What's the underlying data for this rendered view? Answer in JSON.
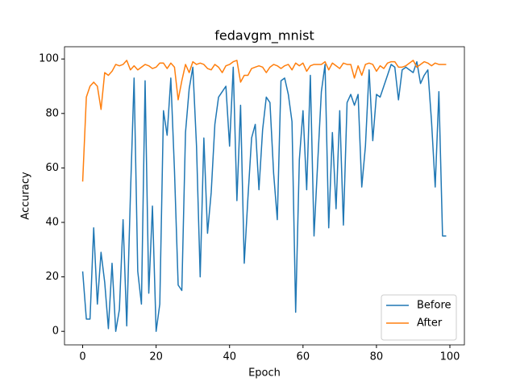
{
  "chart_data": {
    "type": "line",
    "title": "fedavgm_mnist",
    "xlabel": "Epoch",
    "ylabel": "Accuracy",
    "x": [
      0,
      1,
      2,
      3,
      4,
      5,
      6,
      7,
      8,
      9,
      10,
      11,
      12,
      13,
      14,
      15,
      16,
      17,
      18,
      19,
      20,
      21,
      22,
      23,
      24,
      25,
      26,
      27,
      28,
      29,
      30,
      31,
      32,
      33,
      34,
      35,
      36,
      37,
      38,
      39,
      40,
      41,
      42,
      43,
      44,
      45,
      46,
      47,
      48,
      49,
      50,
      51,
      52,
      53,
      54,
      55,
      56,
      57,
      58,
      59,
      60,
      61,
      62,
      63,
      64,
      65,
      66,
      67,
      68,
      69,
      70,
      71,
      72,
      73,
      74,
      75,
      76,
      77,
      78,
      79,
      80,
      81,
      82,
      83,
      84,
      85,
      86,
      87,
      88,
      89,
      90,
      91,
      92,
      93,
      94,
      95,
      96,
      97,
      98,
      99
    ],
    "series": [
      {
        "name": "Before",
        "color": "#1f77b4",
        "values": [
          22,
          4.5,
          4.5,
          38,
          10,
          29,
          18,
          1,
          25,
          0,
          8,
          41,
          2,
          50,
          93,
          22,
          10,
          92,
          14,
          46,
          0,
          10,
          81,
          72,
          93,
          59,
          17,
          15,
          73,
          89,
          97,
          68,
          20,
          71,
          36,
          51,
          76,
          86,
          88,
          90,
          68,
          97,
          48,
          83,
          25,
          49,
          71,
          76,
          52,
          74,
          86,
          84,
          58,
          41,
          92,
          93,
          87,
          77,
          7,
          63,
          81,
          52,
          94,
          35,
          62,
          88,
          98,
          38,
          73,
          45,
          81,
          39,
          84,
          87,
          83,
          87,
          53,
          68,
          96,
          70,
          87,
          86,
          90,
          94,
          98,
          97,
          85,
          96,
          97,
          96,
          95,
          99,
          91,
          94,
          96,
          77,
          53,
          88,
          35,
          35
        ]
      },
      {
        "name": "After",
        "color": "#ff7f0e",
        "values": [
          55,
          86,
          90,
          91.5,
          90,
          81.5,
          95,
          94,
          95.5,
          98,
          97.5,
          98,
          99.5,
          96,
          97.5,
          96,
          97,
          98,
          97.5,
          96.5,
          97,
          98.5,
          98.5,
          96.5,
          98.5,
          97,
          85,
          92,
          98,
          95,
          99,
          98,
          98.5,
          98,
          96.5,
          96,
          98,
          97,
          95,
          97.5,
          98,
          99,
          99.5,
          91.5,
          94,
          94,
          96.5,
          97,
          97.5,
          97,
          95,
          97,
          98,
          97.5,
          96.5,
          97.5,
          98,
          96,
          98.5,
          97.5,
          98.5,
          95.5,
          97.5,
          98,
          98,
          98,
          99,
          96,
          98.5,
          97.5,
          96.5,
          98.5,
          98,
          98,
          93,
          97.5,
          94,
          98,
          98.5,
          98,
          95.5,
          97.5,
          96.5,
          98.5,
          99,
          99,
          97,
          97,
          97.5,
          98.5,
          99.5,
          97,
          98,
          99,
          98.5,
          97.5,
          98.5,
          98,
          98,
          98
        ]
      }
    ],
    "xlim": [
      -4.95,
      103.95
    ],
    "xticks": [
      0,
      20,
      40,
      60,
      80,
      100
    ],
    "ylim": [
      -4.97,
      104.5
    ],
    "yticks": [
      0,
      20,
      40,
      60,
      80,
      100
    ],
    "legend": "lower right",
    "grid": false
  }
}
